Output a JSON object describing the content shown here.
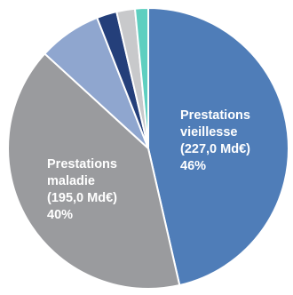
{
  "chart_data": {
    "type": "pie",
    "slices": [
      {
        "name": "Prestations vieillesse",
        "label_lines": [
          "Prestations",
          "vieillesse",
          "(227,0 Md€)",
          "46%"
        ],
        "amount": 227.0,
        "value": 46,
        "color": "#4f7db8"
      },
      {
        "name": "Prestations maladie",
        "label_lines": [
          "Prestations",
          "maladie",
          "(195,0 Md€)",
          "40%"
        ],
        "amount": 195.0,
        "value": 40,
        "color": "#9a9b9e"
      },
      {
        "name": "",
        "label_lines": [],
        "value": 7.2,
        "color": "#8fa6cf"
      },
      {
        "name": "",
        "label_lines": [],
        "value": 2.3,
        "color": "#243f7a"
      },
      {
        "name": "",
        "label_lines": [],
        "value": 2.1,
        "color": "#c8c9cb"
      },
      {
        "name": "",
        "label_lines": [],
        "value": 1.5,
        "color": "#5ecfc0"
      }
    ],
    "start_angle_deg": 0,
    "direction": "clockwise",
    "title": ""
  }
}
